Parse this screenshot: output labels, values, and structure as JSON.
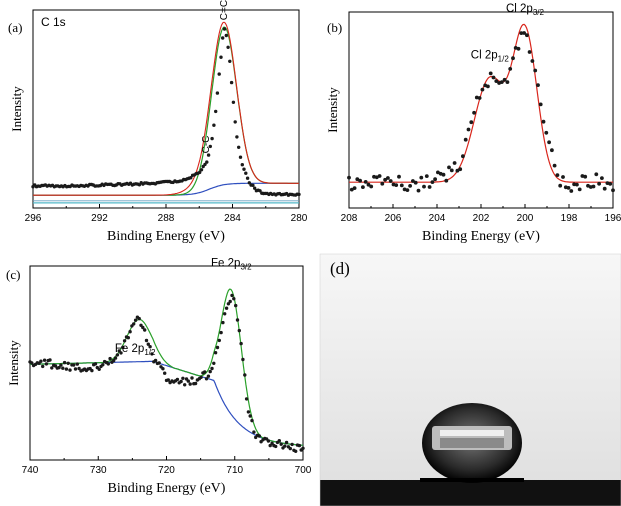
{
  "colors": {
    "axis": "#000000",
    "data_points": "#1a1a1a",
    "envelope_fit": "#d9261c",
    "component_green": "#2aa02a",
    "background_blue": "#2f4fbf",
    "baseline_cyan": "#53b8c8",
    "photo_bg": "#f2f2f2",
    "photo_floor": "#111111"
  },
  "chart_data": [
    {
      "panel_label": "(a)",
      "type": "scatter",
      "title": "C 1s",
      "xlabel": "Binding Energy (eV)",
      "ylabel": "Intensity",
      "xlim": [
        296,
        280
      ],
      "x_reversed": true,
      "x_ticks": [
        "296",
        "292",
        "288",
        "284",
        "280"
      ],
      "y_ticks_shown": false,
      "annotations": [
        {
          "text": "C-C",
          "x": 285.6,
          "rotated": true
        },
        {
          "text": "C=C",
          "x": 284.5,
          "rotated": true
        }
      ],
      "peaks": [
        {
          "label": "C=C",
          "center": 284.5,
          "height": 100
        },
        {
          "label": "C-C",
          "center": 285.6,
          "height": 6
        }
      ],
      "background_level": 7,
      "baseline_level": 0,
      "ylim": [
        -6,
        110
      ],
      "series": [
        {
          "role": "data",
          "x": [
            296,
            294,
            292,
            290,
            288,
            287,
            286.5,
            286,
            285.5,
            285.2,
            285,
            284.8,
            284.6,
            284.5,
            284.4,
            284.2,
            284,
            283.8,
            283.5,
            283,
            282.5,
            282,
            281,
            280
          ],
          "y": [
            7,
            7,
            7.5,
            8,
            9,
            10,
            12,
            15,
            22,
            36,
            52,
            72,
            92,
            100,
            97,
            84,
            62,
            40,
            22,
            9,
            4,
            2.5,
            2,
            2
          ]
        }
      ]
    },
    {
      "panel_label": "(b)",
      "type": "scatter",
      "title": "",
      "xlabel": "Binding Energy (eV)",
      "ylabel": "Intensity",
      "xlim": [
        208,
        196
      ],
      "x_reversed": true,
      "x_ticks": [
        "208",
        "206",
        "204",
        "202",
        "200",
        "198",
        "196"
      ],
      "y_ticks_shown": false,
      "annotations": [
        {
          "text": "Cl 2p1/2",
          "x": 201.6
        },
        {
          "text": "Cl 2p3/2",
          "x": 200.0
        }
      ],
      "peaks": [
        {
          "label": "Cl 2p1/2",
          "center": 201.6,
          "height": 100
        },
        {
          "label": "Cl 2p3/2",
          "center": 200.0,
          "height": 145
        }
      ],
      "background_level": 0,
      "ylim": [
        -25,
        165
      ],
      "series": [
        {
          "role": "data",
          "x": [
            208,
            207,
            206,
            205,
            204,
            203,
            202.5,
            202,
            201.6,
            201.2,
            200.8,
            200.4,
            200,
            199.5,
            199,
            198.5,
            198,
            197,
            196
          ],
          "y": [
            0,
            -2,
            1,
            -3,
            2,
            15,
            55,
            90,
            100,
            92,
            98,
            132,
            145,
            110,
            45,
            5,
            -5,
            2,
            -1
          ]
        }
      ]
    },
    {
      "panel_label": "(c)",
      "type": "scatter",
      "title": "",
      "xlabel": "Binding Energy (eV)",
      "ylabel": "Intensity",
      "xlim": [
        740,
        700
      ],
      "x_reversed": true,
      "x_ticks": [
        "740",
        "730",
        "720",
        "710",
        "700"
      ],
      "y_ticks_shown": false,
      "annotations": [
        {
          "text": "Fe 2p1/2",
          "x": 724
        },
        {
          "text": "Fe 2p3/2",
          "x": 710.5
        }
      ],
      "peaks": [
        {
          "label": "Fe 2p1/2",
          "center": 724,
          "height": 44
        },
        {
          "label": "Fe 2p3/2",
          "center": 710.5,
          "height": 96
        }
      ],
      "ylim": [
        -8,
        110
      ],
      "series": [
        {
          "role": "data",
          "x": [
            740,
            736,
            732,
            729,
            727,
            725,
            724,
            722,
            720,
            718,
            716,
            714,
            713,
            712,
            711,
            710.5,
            710,
            709,
            708,
            707,
            706,
            704,
            702,
            700
          ],
          "y": [
            52,
            50,
            48,
            50,
            56,
            72,
            78,
            55,
            42,
            40,
            40,
            44,
            52,
            70,
            88,
            92,
            88,
            60,
            20,
            8,
            4,
            2,
            0,
            -1
          ]
        }
      ]
    }
  ],
  "photo": {
    "panel_label": "(d)",
    "subject": "water-droplet-on-surface"
  }
}
